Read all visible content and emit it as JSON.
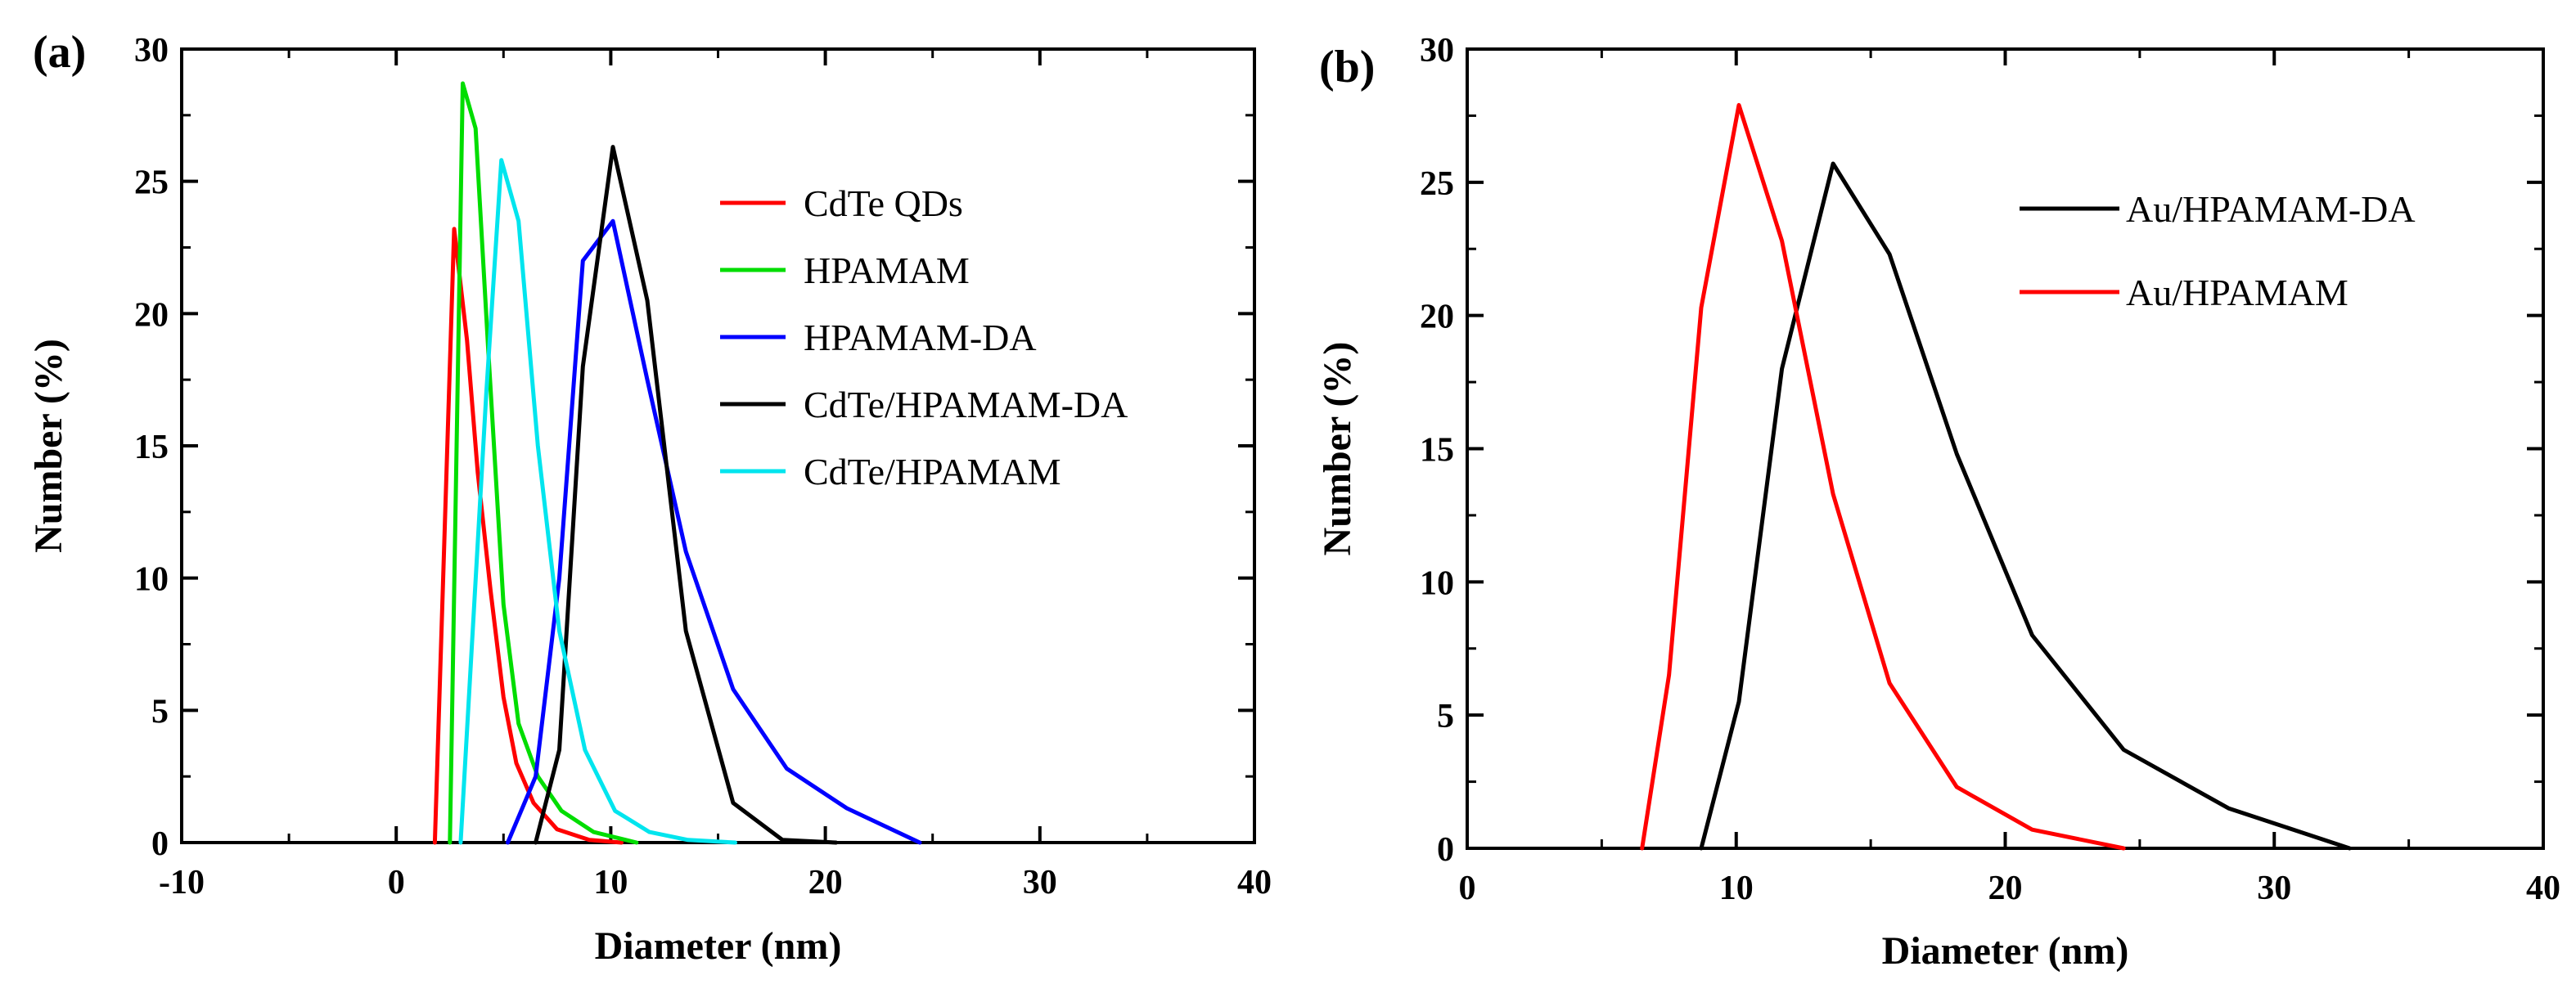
{
  "chart_data": [
    {
      "type": "line",
      "panel_label": "(a)",
      "xlabel": "Diameter (nm)",
      "ylabel": "Number (%)",
      "xlim": [
        -10,
        40
      ],
      "ylim": [
        0,
        30
      ],
      "xticks": [
        -10,
        0,
        10,
        20,
        30,
        40
      ],
      "yticks": [
        0,
        5,
        10,
        15,
        20,
        25,
        30
      ],
      "xtick_labels": [
        "-10",
        "0",
        "10",
        "20",
        "30",
        "40"
      ],
      "ytick_labels": [
        "0",
        "5",
        "10",
        "15",
        "20",
        "25",
        "30"
      ],
      "grid": false,
      "legend_position": "top-right",
      "series": [
        {
          "name": "CdTe QDs",
          "color": "#ff0000",
          "x": [
            1.8,
            2.7,
            3.3,
            3.8,
            4.4,
            5.0,
            5.6,
            6.4,
            7.5,
            9.0,
            10.5
          ],
          "y": [
            0,
            23.2,
            19.0,
            14.0,
            9.5,
            5.5,
            3.0,
            1.5,
            0.5,
            0.1,
            0
          ]
        },
        {
          "name": "HPAMAM",
          "color": "#00dd00",
          "x": [
            2.5,
            3.1,
            3.7,
            4.3,
            5.0,
            5.7,
            6.6,
            7.7,
            9.2,
            11.2
          ],
          "y": [
            0,
            28.7,
            27.0,
            18.5,
            9.0,
            4.5,
            2.5,
            1.2,
            0.4,
            0
          ]
        },
        {
          "name": "HPAMAM-DA",
          "color": "#0000ff",
          "x": [
            5.2,
            6.5,
            7.6,
            8.7,
            10.1,
            11.7,
            13.5,
            15.7,
            18.2,
            21.0,
            24.4
          ],
          "y": [
            0,
            2.5,
            10.0,
            22.0,
            23.5,
            17.5,
            11.0,
            5.8,
            2.8,
            1.3,
            0
          ]
        },
        {
          "name": "CdTe/HPAMAM-DA",
          "color": "#000000",
          "x": [
            6.5,
            7.6,
            8.7,
            10.1,
            11.7,
            13.5,
            15.7,
            18.0,
            20.5
          ],
          "y": [
            0,
            3.5,
            18.0,
            26.3,
            20.5,
            8.0,
            1.5,
            0.1,
            0
          ]
        },
        {
          "name": "CdTe/HPAMAM",
          "color": "#00e5ee",
          "x": [
            3.0,
            4.2,
            4.9,
            5.7,
            6.6,
            7.6,
            8.8,
            10.2,
            11.8,
            13.6,
            15.8
          ],
          "y": [
            0,
            17.0,
            25.8,
            23.5,
            15.0,
            8.0,
            3.5,
            1.2,
            0.4,
            0.1,
            0
          ]
        }
      ]
    },
    {
      "type": "line",
      "panel_label": "(b)",
      "xlabel": "Diameter (nm)",
      "ylabel": "Number (%)",
      "xlim": [
        0,
        40
      ],
      "ylim": [
        0,
        30
      ],
      "xticks": [
        0,
        10,
        20,
        30,
        40
      ],
      "yticks": [
        0,
        5,
        10,
        15,
        20,
        25,
        30
      ],
      "xtick_labels": [
        "0",
        "10",
        "20",
        "30",
        "40"
      ],
      "ytick_labels": [
        "0",
        "5",
        "10",
        "15",
        "20",
        "25",
        "30"
      ],
      "grid": false,
      "legend_position": "top-right",
      "series": [
        {
          "name": "Au/HPAMAM-DA",
          "color": "#000000",
          "x": [
            8.7,
            10.1,
            11.7,
            13.6,
            15.7,
            18.2,
            21.0,
            24.4,
            28.3,
            32.8
          ],
          "y": [
            0,
            5.5,
            18.0,
            25.7,
            22.3,
            14.8,
            8.0,
            3.7,
            1.5,
            0
          ]
        },
        {
          "name": "Au/HPAMAM",
          "color": "#ff0000",
          "x": [
            6.5,
            7.5,
            8.7,
            10.1,
            11.7,
            13.6,
            15.7,
            18.2,
            21.0,
            24.4
          ],
          "y": [
            0,
            6.5,
            20.3,
            27.9,
            22.8,
            13.3,
            6.2,
            2.3,
            0.7,
            0
          ]
        }
      ]
    }
  ]
}
